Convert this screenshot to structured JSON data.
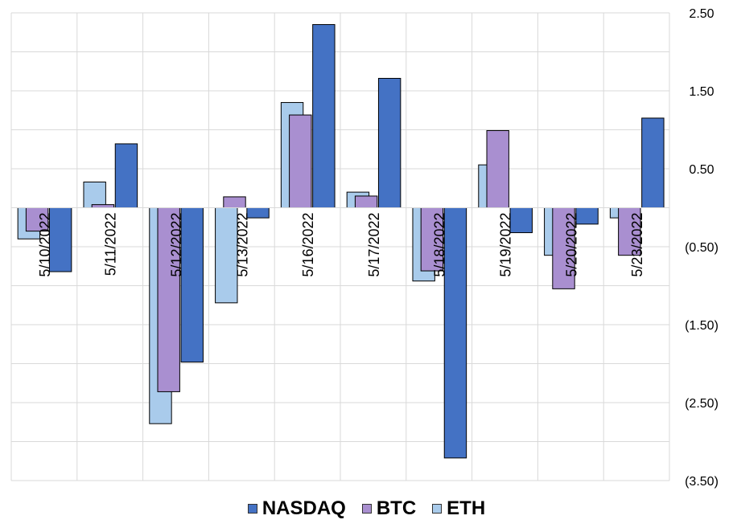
{
  "chart_data": {
    "type": "bar",
    "categories": [
      "5/10/2022",
      "5/11/2022",
      "5/12/2022",
      "5/13/2022",
      "5/16/2022",
      "5/17/2022",
      "5/18/2022",
      "5/19/2022",
      "5/20/2022",
      "5/23/2022"
    ],
    "series": [
      {
        "name": "ETH",
        "color": "#a9cbeb",
        "values": [
          -0.4,
          0.33,
          -2.77,
          -1.22,
          1.35,
          0.2,
          -0.94,
          0.55,
          -0.61,
          -0.13
        ]
      },
      {
        "name": "BTC",
        "color": "#a98fd0",
        "values": [
          -0.3,
          0.04,
          -2.36,
          0.14,
          1.19,
          0.15,
          -0.81,
          0.99,
          -1.04,
          -0.61
        ]
      },
      {
        "name": "NASDAQ",
        "color": "#4472c4",
        "values": [
          -0.82,
          0.82,
          -1.98,
          -0.13,
          2.35,
          1.66,
          -3.21,
          -0.32,
          -0.21,
          1.15
        ]
      }
    ],
    "legend_order": [
      "NASDAQ",
      "BTC",
      "ETH"
    ],
    "y_ticks": [
      "2.50",
      "1.50",
      "0.50",
      "(0.50)",
      "(1.50)",
      "(2.50)",
      "(3.50)"
    ],
    "ylim": [
      -3.5,
      2.5
    ],
    "y_axis_position": "right",
    "grid": true,
    "legend_position": "bottom"
  }
}
